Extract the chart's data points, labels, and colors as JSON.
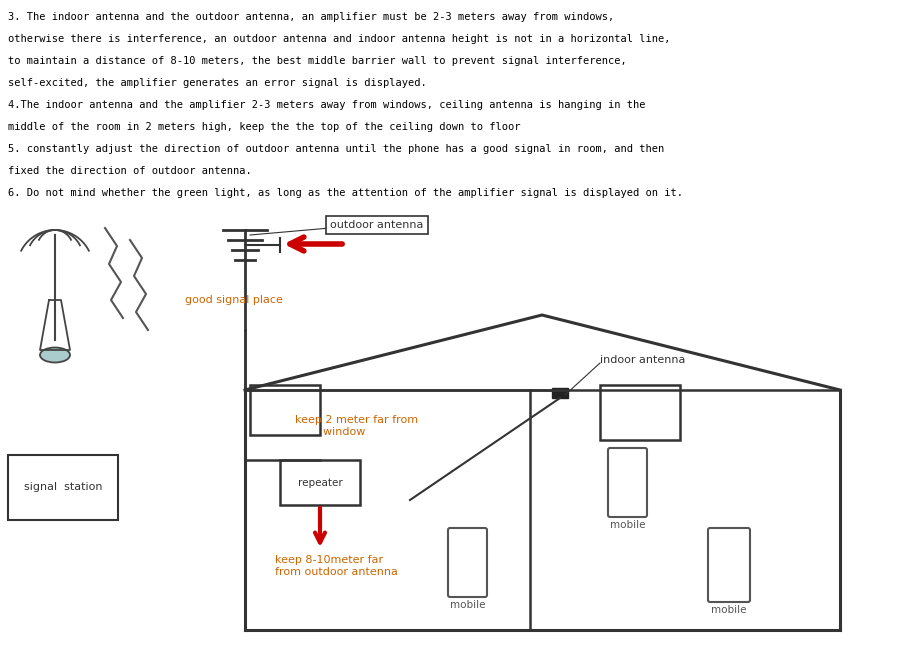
{
  "text_color": "#000000",
  "red_color": "#cc0000",
  "orange_color": "#cc6600",
  "bg_color": "#ffffff",
  "line1": "3. The indoor antenna and the outdoor antenna, an amplifier must be 2-3 meters away from windows,",
  "line2": "otherwise there is interference, an outdoor antenna and indoor antenna height is not in a horizontal line,",
  "line3": "to maintain a distance of 8-10 meters, the best middle barrier wall to prevent signal interference,",
  "line4": "self-excited, the amplifier generates an error signal is displayed.",
  "line5": "4.The indoor antenna and the amplifier 2-3 meters away from windows, ceiling antenna is hanging in the",
  "line6": "middle of the room in 2 meters high, keep the the top of the ceiling down to floor",
  "line7": "5. constantly adjust the direction of outdoor antenna until the phone has a good signal in room, and then",
  "line8": "fixed the direction of outdoor antenna.",
  "line9": "6. Do not mind whether the green light, as long as the attention of the amplifier signal is displayed on it."
}
